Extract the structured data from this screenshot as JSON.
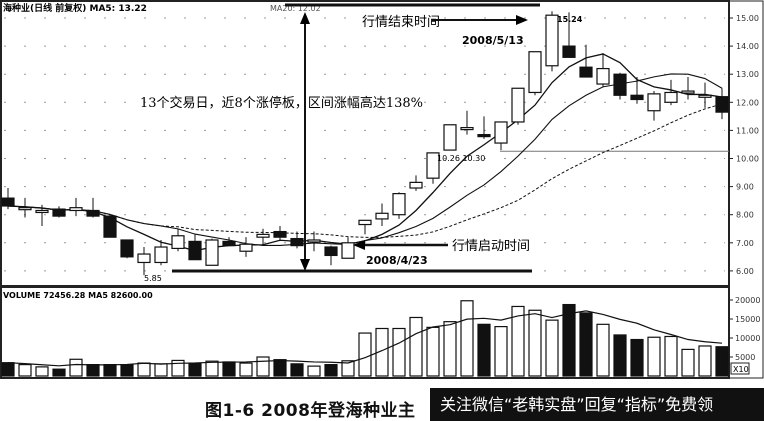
{
  "chart_data": [
    {
      "type": "candlestick",
      "title": "海种业(日线 前复权) MA5: 13.22",
      "ma_label": "MA20: 12.02",
      "y_ticks": [
        "6.00",
        "7.00",
        "8.00",
        "9.00",
        "10.00",
        "11.00",
        "12.00",
        "13.00",
        "14.00",
        "15.00"
      ],
      "ylim": [
        5.6,
        15.5
      ],
      "grid": "dotted",
      "ohlc": [
        [
          8.59,
          8.95,
          8.2,
          8.31
        ],
        [
          8.2,
          8.6,
          7.9,
          8.25
        ],
        [
          8.15,
          8.35,
          7.6,
          8.15
        ],
        [
          8.2,
          8.3,
          7.9,
          7.95
        ],
        [
          8.15,
          8.6,
          7.95,
          8.25
        ],
        [
          8.15,
          8.6,
          7.9,
          7.95
        ],
        [
          7.95,
          7.99,
          7.2,
          7.2
        ],
        [
          7.1,
          7.1,
          6.45,
          6.5
        ],
        [
          6.3,
          6.85,
          5.85,
          6.6
        ],
        [
          6.3,
          7.1,
          6.2,
          6.85
        ],
        [
          6.8,
          7.5,
          6.7,
          7.25
        ],
        [
          7.05,
          7.3,
          6.4,
          6.4
        ],
        [
          6.2,
          7.15,
          6.2,
          7.1
        ],
        [
          7.05,
          7.2,
          6.9,
          6.9
        ],
        [
          6.7,
          7.2,
          6.5,
          6.95
        ],
        [
          7.2,
          7.5,
          6.9,
          7.3
        ],
        [
          7.4,
          7.6,
          7.1,
          7.2
        ],
        [
          7.15,
          7.4,
          6.8,
          6.9
        ],
        [
          7.05,
          7.4,
          6.7,
          7.1
        ],
        [
          6.85,
          6.9,
          6.2,
          6.55
        ],
        [
          6.45,
          7.2,
          6.45,
          7.0
        ],
        [
          7.65,
          7.8,
          7.3,
          7.8
        ],
        [
          7.85,
          8.4,
          7.6,
          8.05
        ],
        [
          8.0,
          8.8,
          7.85,
          8.75
        ],
        [
          8.95,
          9.4,
          8.85,
          9.15
        ],
        [
          9.3,
          10.2,
          9.1,
          10.2
        ],
        [
          10.3,
          11.2,
          10.3,
          11.2
        ],
        [
          11.05,
          11.7,
          10.85,
          11.1
        ],
        [
          10.85,
          11.5,
          10.7,
          10.8
        ],
        [
          10.55,
          11.3,
          10.3,
          11.3
        ],
        [
          11.3,
          12.5,
          11.2,
          12.5
        ],
        [
          12.35,
          13.8,
          12.25,
          13.8
        ],
        [
          13.3,
          15.24,
          13.1,
          15.1
        ],
        [
          14.0,
          15.2,
          13.6,
          13.6
        ],
        [
          13.25,
          14.05,
          12.9,
          12.9
        ],
        [
          12.65,
          13.75,
          12.55,
          13.2
        ],
        [
          13.0,
          13.05,
          12.1,
          12.25
        ],
        [
          12.25,
          12.9,
          11.95,
          12.1
        ],
        [
          11.7,
          12.4,
          11.35,
          12.3
        ],
        [
          12.0,
          12.8,
          11.9,
          12.35
        ],
        [
          12.35,
          12.9,
          12.1,
          12.4
        ],
        [
          12.2,
          12.7,
          11.8,
          12.25
        ],
        [
          12.2,
          12.5,
          11.4,
          11.65
        ]
      ],
      "annotations": {
        "rally_note": "13个交易日，近8个涨停板，区间涨幅高达138%",
        "end_label": "行情结束时间",
        "end_date": "2008/5/13",
        "start_label": "行情启动时间",
        "start_date": "2008/4/23",
        "low_mark": "5.85",
        "high_mark": "15.24",
        "gap_mark": "10.26 10.30"
      },
      "reference_line": 10.26
    },
    {
      "type": "bar",
      "title": "VOLUME 72456.28 MA5 82600.00",
      "y_ticks": [
        "5000",
        "10000",
        "15000",
        "20000"
      ],
      "unit_label": "X10",
      "ylim": [
        0,
        21500
      ],
      "values": [
        3500,
        3000,
        2400,
        1800,
        4400,
        3000,
        3000,
        3000,
        3400,
        3200,
        4100,
        3400,
        3900,
        3700,
        3400,
        5000,
        4300,
        3200,
        2600,
        3000,
        4000,
        11300,
        12500,
        12500,
        15400,
        12800,
        14300,
        19800,
        13600,
        13000,
        18300,
        17300,
        14700,
        18800,
        16600,
        13600,
        10800,
        9600,
        10200,
        10400,
        7000,
        7900,
        7700
      ]
    }
  ],
  "caption": "图1-6   2008年登海种业主",
  "watermark": "关注微信“老韩实盘”回复“指标”免费领",
  "colors": {
    "up": "#ffffff",
    "down": "#111111",
    "line": "#111111",
    "grid": "#999999"
  }
}
